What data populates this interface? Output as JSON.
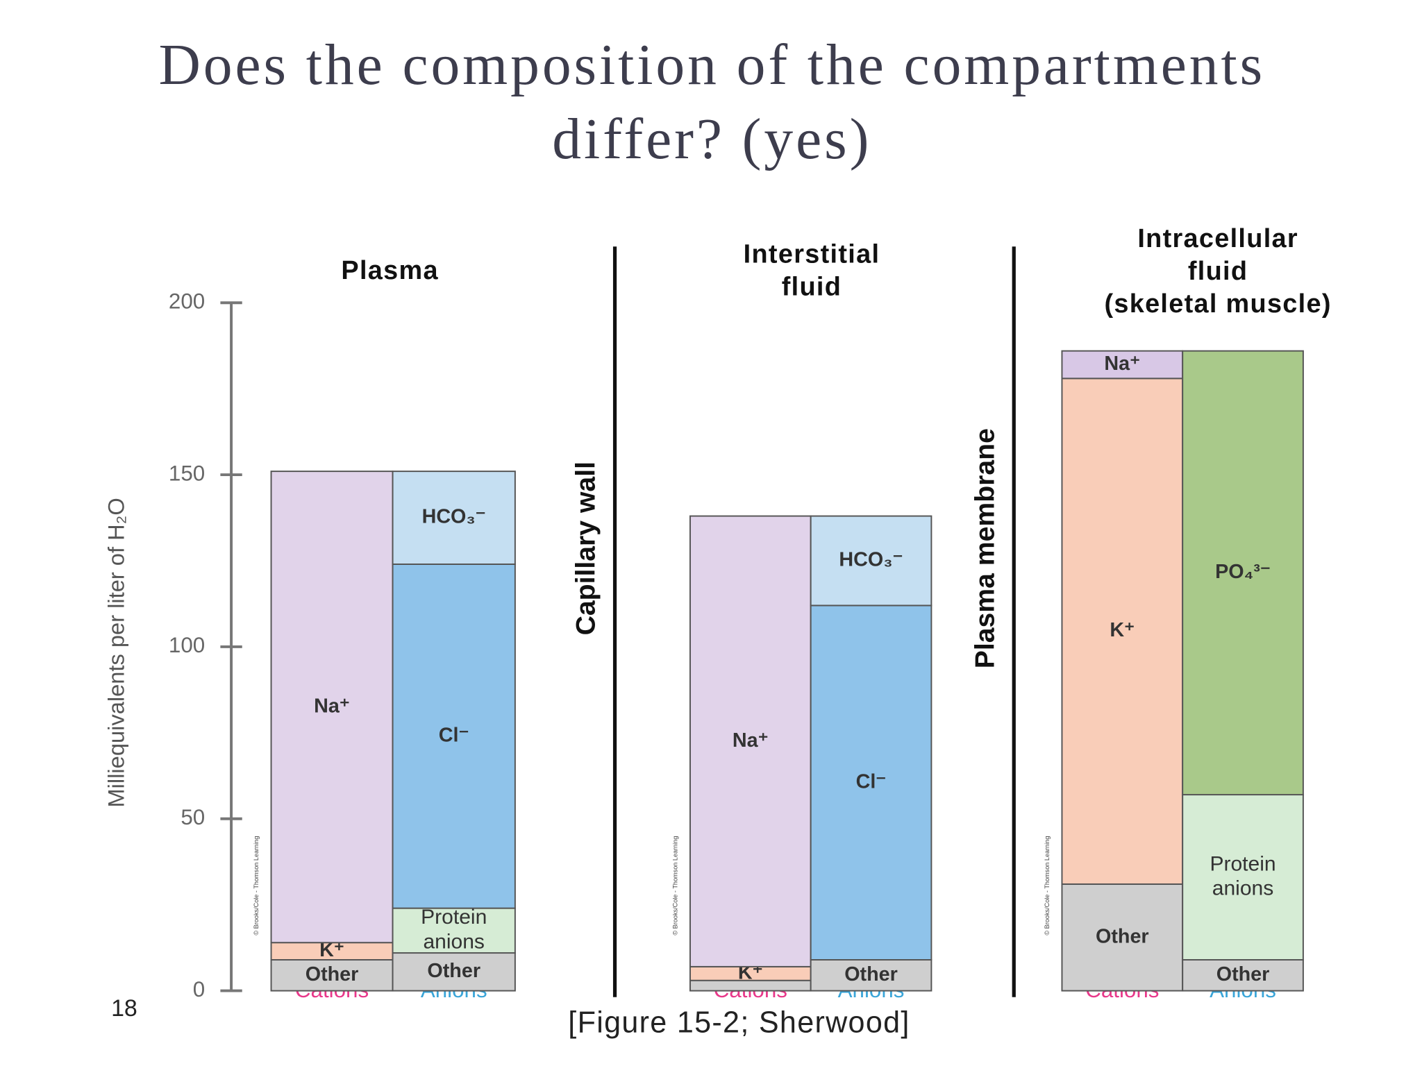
{
  "title": [
    "Does the composition of the compartments",
    "differ? (yes)"
  ],
  "page_number": "18",
  "caption": "[Figure 15-2; Sherwood]",
  "boundaries": [
    "Capillary wall",
    "Plasma membrane"
  ],
  "chart_data": [
    {
      "type": "bar",
      "stacked": true,
      "title": [
        "Plasma"
      ],
      "categories": [
        "Cations",
        "Anions"
      ],
      "category_colors": [
        "#e8388a",
        "#3aa5d8"
      ],
      "ylim": [
        0,
        200
      ],
      "yticks": [
        0,
        50,
        100,
        150,
        200
      ],
      "y_label": "Milliequivalents per liter of H₂O",
      "credit": "© Brooks/Cole - Thomson Learning",
      "stacks": [
        [
          {
            "label": [
              "Other"
            ],
            "color": "#cfcfcf",
            "value": 9
          },
          {
            "label": [
              "K⁺"
            ],
            "color": "#f9cdb8",
            "value": 5
          },
          {
            "label": [
              "Na⁺"
            ],
            "color": "#e1d3ea",
            "value": 137
          }
        ],
        [
          {
            "label": [
              "Other"
            ],
            "color": "#cfcfcf",
            "value": 11
          },
          {
            "label": [
              "Protein",
              "anions"
            ],
            "color": "#d6ecd5",
            "value": 13
          },
          {
            "label": [
              "Cl⁻"
            ],
            "color": "#8fc3ea",
            "value": 100
          },
          {
            "label": [
              "HCO₃⁻"
            ],
            "color": "#c5dff2",
            "value": 27
          }
        ]
      ]
    },
    {
      "type": "bar",
      "stacked": true,
      "title": [
        "Interstitial",
        "fluid"
      ],
      "categories": [
        "Cations",
        "Anions"
      ],
      "category_colors": [
        "#e8388a",
        "#3aa5d8"
      ],
      "ylim": [
        0,
        200
      ],
      "credit": "© Brooks/Cole - Thomson Learning",
      "stacks": [
        [
          {
            "label": [],
            "color": "#cfcfcf",
            "value": 3
          },
          {
            "label": [
              "K⁺"
            ],
            "color": "#f9cdb8",
            "value": 4
          },
          {
            "label": [
              "Na⁺"
            ],
            "color": "#e1d3ea",
            "value": 131
          }
        ],
        [
          {
            "label": [
              "Other"
            ],
            "color": "#cfcfcf",
            "value": 9
          },
          {
            "label": [
              "Cl⁻"
            ],
            "color": "#8fc3ea",
            "value": 103
          },
          {
            "label": [
              "HCO₃⁻"
            ],
            "color": "#c5dff2",
            "value": 26
          }
        ]
      ]
    },
    {
      "type": "bar",
      "stacked": true,
      "title": [
        "Intracellular",
        "fluid",
        "(skeletal muscle)"
      ],
      "categories": [
        "Cations",
        "Anions"
      ],
      "category_colors": [
        "#e8388a",
        "#3aa5d8"
      ],
      "ylim": [
        0,
        200
      ],
      "credit": "© Brooks/Cole - Thomson Learning",
      "stacks": [
        [
          {
            "label": [
              "Other"
            ],
            "color": "#cfcfcf",
            "value": 31
          },
          {
            "label": [
              "K⁺"
            ],
            "color": "#f9cdb8",
            "value": 147
          },
          {
            "label": [
              "Na⁺"
            ],
            "color": "#d8c8e6",
            "value": 8
          }
        ],
        [
          {
            "label": [
              "Other"
            ],
            "color": "#cfcfcf",
            "value": 9
          },
          {
            "label": [
              "Protein",
              "anions"
            ],
            "color": "#d6ecd5",
            "value": 48
          },
          {
            "label": [
              "PO₄³⁻"
            ],
            "color": "#a9c98a",
            "value": 129
          }
        ]
      ]
    }
  ]
}
